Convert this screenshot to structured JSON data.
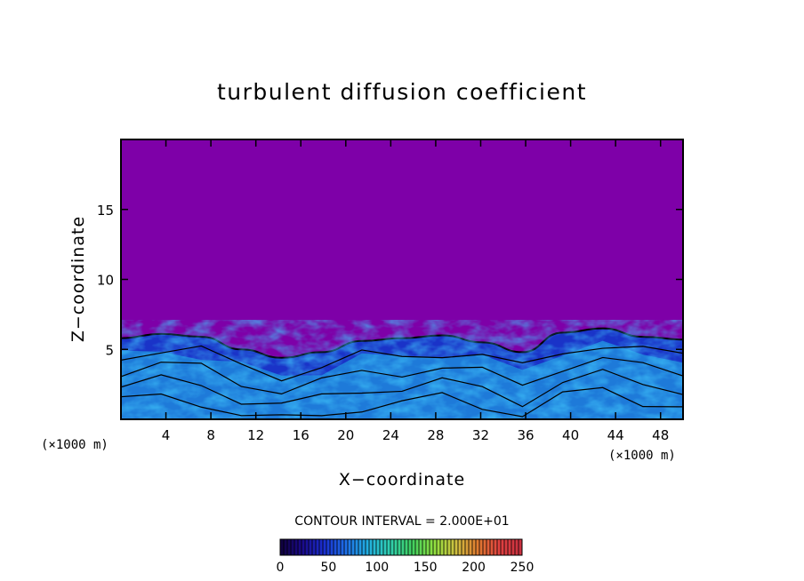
{
  "chart_data": {
    "type": "heatmap",
    "title": "turbulent diffusion coefficient",
    "xlabel": "X−coordinate",
    "ylabel": "Z−coordinate",
    "x_unit_left": "(×1000 m)",
    "x_unit_right": "(×1000 m)",
    "xlim": [
      0,
      50
    ],
    "ylim": [
      0,
      20
    ],
    "x_ticks": [
      "4",
      "8",
      "12",
      "16",
      "20",
      "24",
      "28",
      "32",
      "36",
      "40",
      "44",
      "48"
    ],
    "y_ticks": [
      "5",
      "10",
      "15"
    ],
    "contour_interval_text": "CONTOUR INTERVAL = 2.000E+01",
    "colorbar": {
      "min": 0,
      "max": 250,
      "labels": [
        "0",
        "50",
        "100",
        "150",
        "200",
        "250"
      ],
      "colors": [
        "#10003c",
        "#1a0a8a",
        "#1a2fd0",
        "#1e70e8",
        "#22b0e0",
        "#30d0b0",
        "#40d060",
        "#90e040",
        "#d0c040",
        "#e07a30",
        "#e04040",
        "#c83040"
      ]
    },
    "background_value": 0,
    "boundary_layer_top_km": [
      5.8,
      6.1,
      5.9,
      5.0,
      4.4,
      4.8,
      5.6,
      5.8,
      6.0,
      5.5,
      4.8,
      6.2,
      6.5,
      5.9,
      5.7
    ]
  }
}
